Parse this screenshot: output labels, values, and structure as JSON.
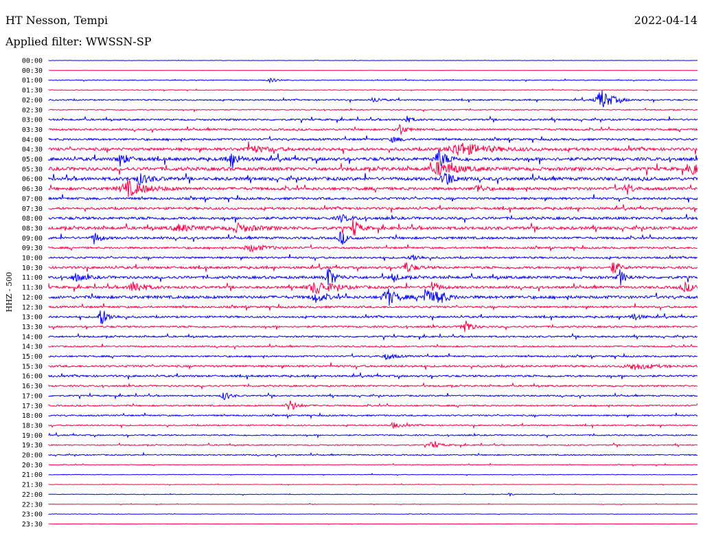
{
  "header": {
    "station": "HT Nesson, Tempi",
    "date": "2022-04-14",
    "filter": "Applied filter: WWSSN-SP"
  },
  "chart_data": {
    "type": "line",
    "title": "HT Nesson, Tempi",
    "ylabel": "HHZ - 500",
    "ticks": [
      "00:00",
      "00:30",
      "01:00",
      "01:30",
      "02:00",
      "02:30",
      "03:00",
      "03:30",
      "04:00",
      "04:30",
      "05:00",
      "05:30",
      "06:00",
      "06:30",
      "07:00",
      "07:30",
      "08:00",
      "08:30",
      "09:00",
      "09:30",
      "10:00",
      "10:30",
      "11:00",
      "11:30",
      "12:00",
      "12:30",
      "13:00",
      "13:30",
      "14:00",
      "14:30",
      "15:00",
      "15:30",
      "16:00",
      "16:30",
      "17:00",
      "17:30",
      "18:00",
      "18:30",
      "19:00",
      "19:30",
      "20:00",
      "20:30",
      "21:00",
      "21:30",
      "22:00",
      "22:30",
      "23:00",
      "23:30"
    ],
    "colors": [
      "#0000ff",
      "#ff0044"
    ],
    "noise": [
      0.2,
      0.1,
      0.5,
      0.4,
      0.9,
      0.7,
      1.2,
      1.3,
      1.4,
      2.0,
      2.2,
      2.4,
      2.2,
      2.0,
      1.6,
      1.6,
      1.8,
      2.0,
      1.6,
      1.3,
      1.3,
      1.6,
      1.8,
      1.7,
      2.0,
      1.4,
      1.3,
      1.2,
      1.1,
      1.0,
      1.1,
      1.4,
      1.3,
      1.1,
      1.0,
      1.0,
      1.0,
      0.9,
      0.9,
      0.8,
      0.8,
      0.5,
      0.4,
      0.3,
      0.4,
      0.3,
      0.3,
      0.2
    ],
    "events": [
      {
        "row": 2,
        "x": 0.34,
        "amp": 3,
        "w": 0.01
      },
      {
        "row": 4,
        "x": 0.85,
        "amp": 18,
        "w": 0.012
      },
      {
        "row": 4,
        "x": 0.5,
        "amp": 4,
        "w": 0.008
      },
      {
        "row": 6,
        "x": 0.55,
        "amp": 6,
        "w": 0.006
      },
      {
        "row": 7,
        "x": 0.54,
        "amp": 10,
        "w": 0.006
      },
      {
        "row": 8,
        "x": 0.53,
        "amp": 4,
        "w": 0.01
      },
      {
        "row": 9,
        "x": 0.31,
        "amp": 5,
        "w": 0.02
      },
      {
        "row": 9,
        "x": 0.63,
        "amp": 10,
        "w": 0.03
      },
      {
        "row": 10,
        "x": 0.11,
        "amp": 10,
        "w": 0.008
      },
      {
        "row": 10,
        "x": 0.28,
        "amp": 12,
        "w": 0.008
      },
      {
        "row": 10,
        "x": 0.6,
        "amp": 14,
        "w": 0.01
      },
      {
        "row": 11,
        "x": 0.6,
        "amp": 10,
        "w": 0.02
      },
      {
        "row": 11,
        "x": 0.99,
        "amp": 16,
        "w": 0.005
      },
      {
        "row": 12,
        "x": 0.14,
        "amp": 8,
        "w": 0.012
      },
      {
        "row": 12,
        "x": 0.61,
        "amp": 14,
        "w": 0.008
      },
      {
        "row": 13,
        "x": 0.12,
        "amp": 12,
        "w": 0.02
      },
      {
        "row": 13,
        "x": 0.66,
        "amp": 8,
        "w": 0.006
      },
      {
        "row": 13,
        "x": 0.89,
        "amp": 10,
        "w": 0.006
      },
      {
        "row": 16,
        "x": 0.45,
        "amp": 5,
        "w": 0.01
      },
      {
        "row": 17,
        "x": 0.2,
        "amp": 5,
        "w": 0.02
      },
      {
        "row": 17,
        "x": 0.29,
        "amp": 6,
        "w": 0.02
      },
      {
        "row": 17,
        "x": 0.47,
        "amp": 14,
        "w": 0.006
      },
      {
        "row": 18,
        "x": 0.07,
        "amp": 10,
        "w": 0.006
      },
      {
        "row": 18,
        "x": 0.45,
        "amp": 12,
        "w": 0.006
      },
      {
        "row": 19,
        "x": 0.31,
        "amp": 5,
        "w": 0.02
      },
      {
        "row": 20,
        "x": 0.56,
        "amp": 6,
        "w": 0.008
      },
      {
        "row": 21,
        "x": 0.55,
        "amp": 8,
        "w": 0.01
      },
      {
        "row": 21,
        "x": 0.87,
        "amp": 12,
        "w": 0.006
      },
      {
        "row": 22,
        "x": 0.04,
        "amp": 6,
        "w": 0.01
      },
      {
        "row": 22,
        "x": 0.43,
        "amp": 16,
        "w": 0.008
      },
      {
        "row": 22,
        "x": 0.53,
        "amp": 8,
        "w": 0.006
      },
      {
        "row": 22,
        "x": 0.88,
        "amp": 12,
        "w": 0.006
      },
      {
        "row": 23,
        "x": 0.13,
        "amp": 12,
        "w": 0.01
      },
      {
        "row": 23,
        "x": 0.41,
        "amp": 10,
        "w": 0.02
      },
      {
        "row": 23,
        "x": 0.59,
        "amp": 8,
        "w": 0.008
      },
      {
        "row": 23,
        "x": 0.98,
        "amp": 6,
        "w": 0.015
      },
      {
        "row": 24,
        "x": 0.41,
        "amp": 8,
        "w": 0.01
      },
      {
        "row": 24,
        "x": 0.52,
        "amp": 16,
        "w": 0.01
      },
      {
        "row": 24,
        "x": 0.58,
        "amp": 14,
        "w": 0.008
      },
      {
        "row": 24,
        "x": 0.6,
        "amp": 12,
        "w": 0.008
      },
      {
        "row": 26,
        "x": 0.08,
        "amp": 14,
        "w": 0.008
      },
      {
        "row": 26,
        "x": 0.9,
        "amp": 6,
        "w": 0.008
      },
      {
        "row": 27,
        "x": 0.64,
        "amp": 16,
        "w": 0.006
      },
      {
        "row": 30,
        "x": 0.52,
        "amp": 5,
        "w": 0.01
      },
      {
        "row": 31,
        "x": 0.9,
        "amp": 5,
        "w": 0.02
      },
      {
        "row": 34,
        "x": 0.27,
        "amp": 8,
        "w": 0.006
      },
      {
        "row": 35,
        "x": 0.37,
        "amp": 10,
        "w": 0.008
      },
      {
        "row": 37,
        "x": 0.53,
        "amp": 4,
        "w": 0.01
      },
      {
        "row": 39,
        "x": 0.59,
        "amp": 6,
        "w": 0.008
      },
      {
        "row": 44,
        "x": 0.71,
        "amp": 6,
        "w": 0.002
      }
    ]
  }
}
